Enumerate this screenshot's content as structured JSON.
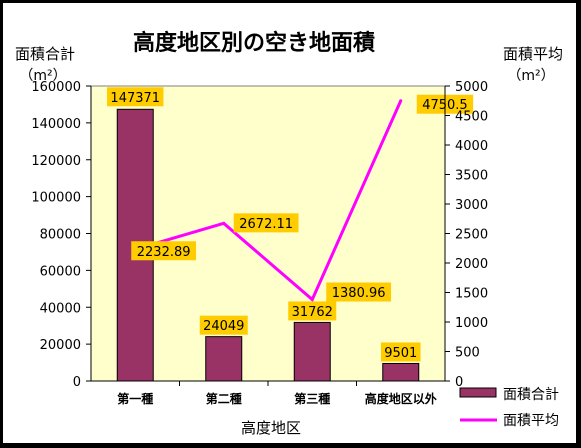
{
  "chart_data": {
    "type": "bar",
    "title": "高度地区別の空き地面積",
    "xlabel": "高度地区",
    "categories": [
      "第一種",
      "第二種",
      "第三種",
      "高度地区以外"
    ],
    "series": [
      {
        "name": "面積合計",
        "type": "bar",
        "axis": "left",
        "values": [
          147371,
          24049,
          31762,
          9501
        ],
        "labels": [
          "147371",
          "24049",
          "31762",
          "9501"
        ],
        "color": "#993366"
      },
      {
        "name": "面積平均",
        "type": "line",
        "axis": "right",
        "values": [
          2232.89,
          2672.11,
          1380.96,
          4750.5
        ],
        "labels": [
          "2232.89",
          "2672.11",
          "1380.96",
          "4750.5"
        ],
        "color": "#ff00ff"
      }
    ],
    "y_left": {
      "label": "面積合計",
      "unit": "（m²）",
      "ylim": [
        0,
        160000
      ],
      "ticks": [
        "0",
        "20000",
        "40000",
        "60000",
        "80000",
        "100000",
        "120000",
        "140000",
        "160000"
      ]
    },
    "y_right": {
      "label": "面積平均",
      "unit": "（m²）",
      "ylim": [
        0,
        5000
      ],
      "ticks": [
        "0",
        "500",
        "1000",
        "1500",
        "2000",
        "2500",
        "3000",
        "3500",
        "4000",
        "4500",
        "5000"
      ]
    },
    "grid": false,
    "plot_background": "#ffffcc",
    "label_background": "#ffcc00",
    "legend_position": "bottom-right"
  }
}
